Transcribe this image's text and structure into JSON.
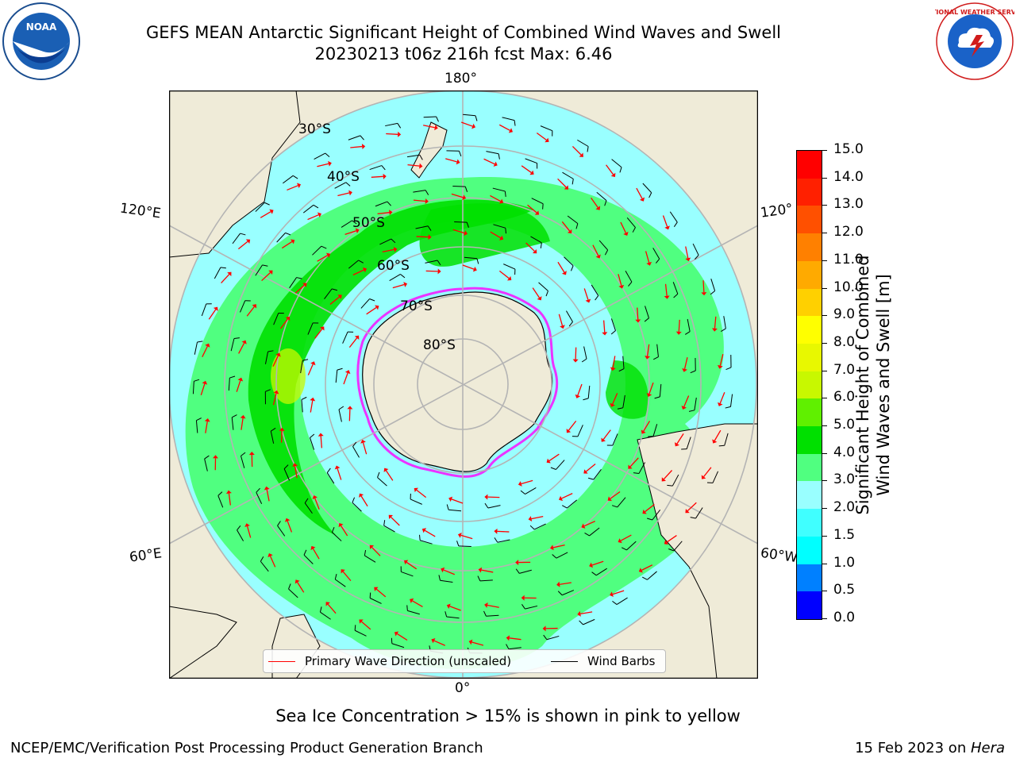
{
  "title": {
    "line1": "GEFS MEAN Antarctic Significant Height of Combined Wind Waves and Swell",
    "line2": "20230213 t06z 216h fcst   Max: 6.46"
  },
  "map": {
    "longitude_labels": {
      "top": "180°",
      "bottom": "0°",
      "upper_left": "120°E",
      "upper_right": "120°",
      "lower_left": "60°E",
      "lower_right": "60°W"
    },
    "latitude_labels": [
      "30°S",
      "40°S",
      "50°S",
      "60°S",
      "70°S",
      "80°S"
    ]
  },
  "legend": {
    "wave_label": "Primary Wave Direction (unscaled)",
    "wind_label": "Wind Barbs",
    "wave_color": "#ff0000",
    "wind_color": "#000000"
  },
  "colorbar": {
    "label_line1": "Significant Height of Combined",
    "label_line2": "Wind Waves and Swell [m]",
    "ticks": [
      "0.0",
      "0.5",
      "1.0",
      "1.5",
      "2.0",
      "3.0",
      "4.0",
      "5.0",
      "6.0",
      "7.0",
      "8.0",
      "9.0",
      "10.0",
      "11.0",
      "12.0",
      "13.0",
      "14.0",
      "15.0"
    ],
    "colors": [
      "#0000ff",
      "#0080ff",
      "#00ffff",
      "#40ffff",
      "#99ffff",
      "#50ff80",
      "#00e000",
      "#60f000",
      "#c8f800",
      "#e8f800",
      "#ffff00",
      "#ffd000",
      "#ffaa00",
      "#ff8000",
      "#ff5000",
      "#ff2000",
      "#ff0000"
    ]
  },
  "map_colors": {
    "land": "#efebd8",
    "ocean_low": "#99ffff",
    "ocean_mid": "#50ff80",
    "ocean_high": "#00e000",
    "ocean_peak": "#c8f800",
    "ice_edge": "#ff00ff",
    "grid": "#b4b4b4"
  },
  "ice_note": "Sea Ice Concentration > 15% is shown in pink to yellow",
  "footer": {
    "left": "NCEP/EMC/Verification Post Processing Product Generation Branch",
    "right_date": "15 Feb 2023 on ",
    "right_machine": "Hera"
  },
  "logos": {
    "noaa": "NOAA",
    "nws": "NATIONAL WEATHER SERVICE"
  }
}
